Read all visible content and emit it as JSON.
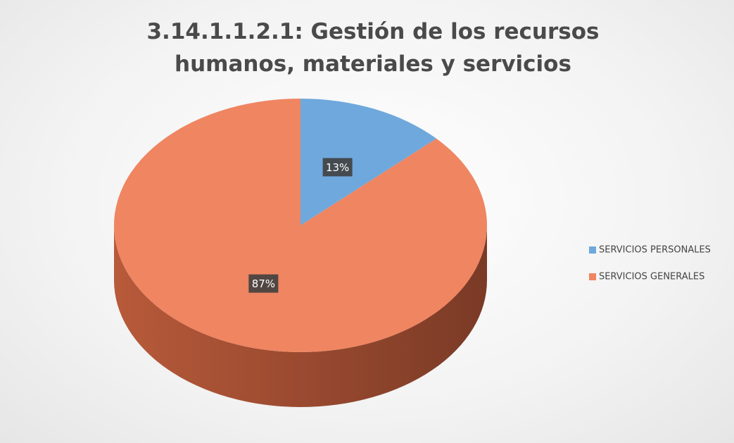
{
  "chart_data": {
    "type": "pie",
    "title": "3.14.1.1.2.1: Gestión de los recursos humanos, materiales y servicios",
    "categories": [
      "SERVICIOS PERSONALES",
      "SERVICIOS GENERALES"
    ],
    "values": [
      13,
      87
    ],
    "value_labels": [
      "13%",
      "87%"
    ],
    "colors": [
      "#6fa8dc",
      "#ef8561"
    ],
    "legend": "right"
  }
}
